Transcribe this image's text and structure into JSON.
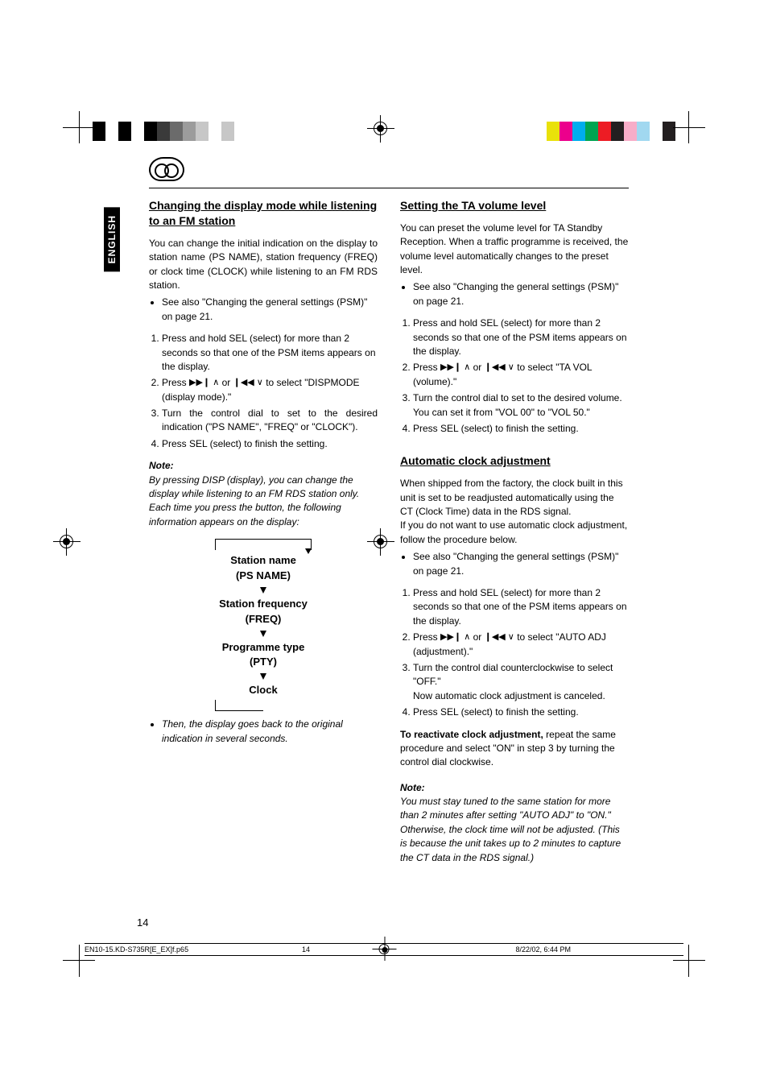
{
  "printMarks": {
    "colorBars": {
      "left": [
        "#000000",
        "#ffffff",
        "#000000",
        "#ffffff",
        "#000000",
        "#3a3a3a",
        "#6b6b6b",
        "#9c9c9c",
        "#c7c7c7",
        "#ffffff",
        "#c7c7c7"
      ],
      "right": [
        "#e9e10a",
        "#ec008c",
        "#00adee",
        "#00a551",
        "#ed1c24",
        "#231f20",
        "#f7adc8",
        "#a1d8f0",
        "#ffffff",
        "#231f20"
      ],
      "swatchWidth": 16
    }
  },
  "languageTab": "ENGLISH",
  "leftColumn": {
    "heading": "Changing the display mode while listening to an FM station",
    "intro": "You can change the initial indication on the display to station name (PS NAME), station frequency (FREQ) or clock time (CLOCK) while listening to an FM RDS station.",
    "bullet1": "See also \"Changing the general settings (PSM)\" on page 21.",
    "steps": {
      "s1": "Press and hold SEL (select) for more than 2 seconds so that one of the PSM items appears on the display.",
      "s2a": "Press ",
      "s2b": " or ",
      "s2c": " to select \"DISPMODE (display mode).\"",
      "s3": "Turn the control dial to set to the desired indication (\"PS NAME\", \"FREQ\" or \"CLOCK\").",
      "s4": "Press SEL (select) to finish the setting."
    },
    "noteHead": "Note:",
    "noteBody": "By pressing DISP (display), you can change the display while listening to an FM RDS station only. Each time you press the button, the following information appears on the display:",
    "cycle": {
      "i1a": "Station name",
      "i1b": "(PS NAME)",
      "i2a": "Station frequency",
      "i2b": "(FREQ)",
      "i3a": "Programme type",
      "i3b": "(PTY)",
      "i4": "Clock"
    },
    "tailBullet": "Then, the display goes back to the original indication in several seconds."
  },
  "rightColumn": {
    "sectionA": {
      "heading": "Setting the TA volume level",
      "intro": "You can preset the volume level for TA Standby Reception. When a traffic programme is received, the volume level automatically changes to the preset level.",
      "bullet1": "See also \"Changing the general settings (PSM)\" on page 21.",
      "steps": {
        "s1": "Press and hold SEL (select) for more than 2 seconds so that one of the PSM items appears on the display.",
        "s2a": "Press ",
        "s2b": " or ",
        "s2c": " to select \"TA VOL (volume).\"",
        "s3": "Turn the control dial to set to the desired volume. You can set it from \"VOL 00\" to \"VOL 50.\"",
        "s4": "Press SEL (select) to finish the setting."
      }
    },
    "sectionB": {
      "heading": "Automatic clock adjustment",
      "p1": "When shipped from the factory, the clock built in this unit is set to be readjusted automatically using the CT (Clock Time) data in the RDS signal.",
      "p2": "If you do not want to use automatic clock adjustment, follow the procedure below.",
      "bullet1": "See also \"Changing the general settings (PSM)\" on page 21.",
      "steps": {
        "s1": "Press and hold SEL (select) for more than 2 seconds so that one of the PSM items appears on the display.",
        "s2a": "Press ",
        "s2b": " or ",
        "s2c": " to select \"AUTO ADJ (adjustment).\"",
        "s3a": "Turn the control dial counterclockwise to select \"OFF.\"",
        "s3b": "Now automatic clock adjustment is canceled.",
        "s4": "Press SEL (select) to finish the setting."
      },
      "react1": "To reactivate clock adjustment,",
      "react2": " repeat the same procedure and select \"ON\" in step 3 by turning the control dial clockwise.",
      "noteHead": "Note:",
      "noteBody": "You must stay tuned to the same station for more than 2 minutes after setting \"AUTO ADJ\" to \"ON.\" Otherwise, the clock time will not be adjusted. (This is because the unit takes up to 2 minutes to capture the CT data in the RDS signal.)"
    }
  },
  "glyphs": {
    "ffwd": "▶▶❙ ∧",
    "rew": "❙◀◀ ∨"
  },
  "pageNumber": "14",
  "footer": {
    "file": "EN10-15.KD-S735R[E_EX]f.p65",
    "page": "14",
    "date": "8/22/02, 6:44 PM"
  }
}
